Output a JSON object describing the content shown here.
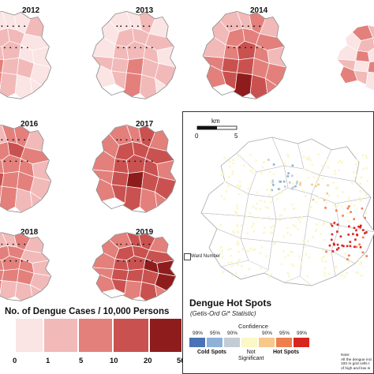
{
  "years": [
    "2012",
    "2013",
    "2014",
    "2016",
    "2017",
    "2018",
    "2019"
  ],
  "legend": {
    "title": "No. of Dengue Cases / 10,000 Persons",
    "ticks": [
      "0",
      "1",
      "5",
      "10",
      "20",
      "50"
    ],
    "colors": [
      "#fbe4e4",
      "#f2b9b9",
      "#e3807c",
      "#c95250",
      "#8f1c1c"
    ]
  },
  "hotspots": {
    "title": "Dengue Hot Spots",
    "subtitle": "(Getis-Ord Gi* Statistic)",
    "confidence_label": "Confidence",
    "percent_labels": [
      "99%",
      "95%",
      "90%",
      "90%",
      "95%",
      "99%"
    ],
    "classes": [
      {
        "color": "#4a72b6"
      },
      {
        "color": "#8fb0d8"
      },
      {
        "color": "#c3ccd4"
      },
      {
        "color": "#fbf7c7"
      },
      {
        "color": "#f6c88a"
      },
      {
        "color": "#ee7e4d"
      },
      {
        "color": "#d7261e"
      }
    ],
    "cold_label": "Cold Spots",
    "not_sig_label": "Not\nSignificant",
    "hot_label": "Hot Spots",
    "ward_label": "Ward Number",
    "scale_unit": "km",
    "scale_ticks": [
      "0",
      "5"
    ],
    "note": "Note:\nAll the dengue inci\n100 m grid cells t\nof high and low in"
  }
}
